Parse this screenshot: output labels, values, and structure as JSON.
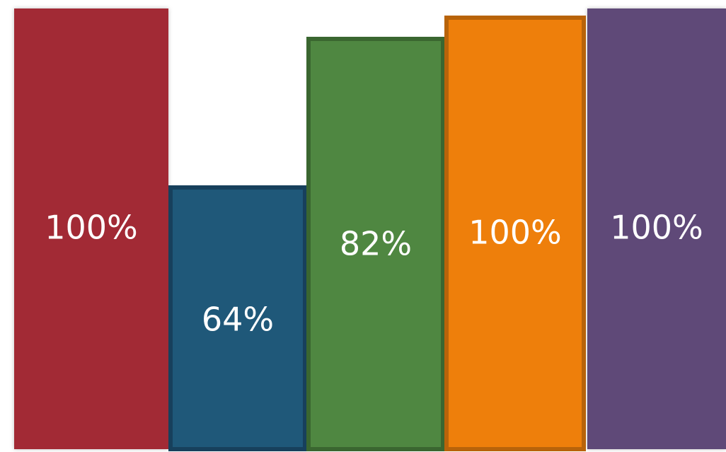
{
  "chart_data": {
    "type": "bar",
    "categories": [
      "",
      "",
      "",
      "",
      ""
    ],
    "values": [
      100,
      64,
      82,
      100,
      100
    ],
    "data_labels": [
      "100%",
      "64%",
      "82%",
      "100%",
      "100%"
    ],
    "colors": [
      "#A22935",
      "#1F5879",
      "#4F8741",
      "#EE7F0B",
      "#5F4A78"
    ],
    "border_colors": [
      "#A22935",
      "#17405C",
      "#3A6630",
      "#B8630A",
      "#5F4A78"
    ],
    "ylim": [
      0,
      100
    ],
    "grid": false,
    "legend": "none"
  }
}
